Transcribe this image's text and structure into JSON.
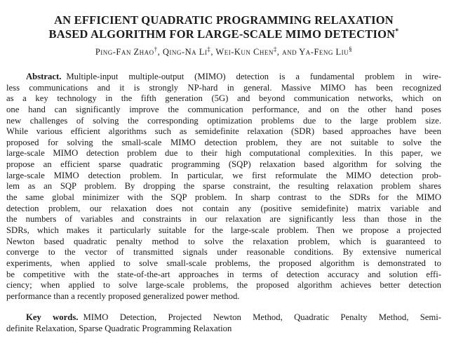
{
  "page": {
    "background": "#ffffff",
    "text_color": "#1a1a1a"
  },
  "title": {
    "line1": "AN EFFICIENT QUADRATIC PROGRAMMING RELAXATION",
    "line2": "BASED ALGORITHM FOR LARGE-SCALE MIMO DETECTION",
    "footnote_mark": "*"
  },
  "authors": {
    "segments": [
      {
        "text": "Ping-Fan Zhao",
        "mark": "†",
        "sep": ", "
      },
      {
        "text": "Qing-Na Li",
        "mark": "‡",
        "sep": ", "
      },
      {
        "text": "Wei-Kun Chen",
        "mark": "‡",
        "sep": ", "
      },
      {
        "text": "and Ya-Feng Liu",
        "mark": "§",
        "sep": ""
      }
    ]
  },
  "abstract": {
    "heading": "Abstract.",
    "lines": [
      "Multiple-input multiple-output (MIMO) detection is a fundamental problem in wire-",
      "less communications and it is strongly NP-hard in general. Massive MIMO has been recognized",
      "as a key technology in the fifth generation (5G) and beyond communication networks, which on",
      "one hand can significantly improve the communication performance, and on the other hand poses",
      "new challenges of solving the corresponding optimization problems due to the large problem size.",
      "While various efficient algorithms such as semidefinite relaxation (SDR) based approaches have been",
      "proposed for solving the small-scale MIMO detection problem, they are not suitable to solve the",
      "large-scale MIMO detection problem due to their high computational complexities. In this paper, we",
      "propose an efficient sparse quadratic programming (SQP) relaxation based algorithm for solving the",
      "large-scale MIMO detection problem. In particular, we first reformulate the MIMO detection prob-",
      "lem as an SQP problem. By dropping the sparse constraint, the resulting relaxation problem shares",
      "the same global minimizer with the SQP problem. In sharp contrast to the SDRs for the MIMO",
      "detection problem, our relaxation does not contain any (positive semidefinite) matrix variable and",
      "the numbers of variables and constraints in our relaxation are significantly less than those in the",
      "SDRs, which makes it particularly suitable for the large-scale problem. Then we propose a projected",
      "Newton based quadratic penalty method to solve the relaxation problem, which is guaranteed to",
      "converge to the vector of transmitted signals under reasonable conditions. By extensive numerical",
      "experiments, when applied to solve small-scale problems, the proposed algorithm is demonstrated to",
      "be competitive with the state-of-the-art approaches in terms of detection accuracy and solution effi-",
      "ciency; when applied to solve large-scale problems, the proposed algorithm achieves better detection",
      "performance than a recently proposed generalized power method."
    ]
  },
  "keywords": {
    "heading": "Key words.",
    "lines": [
      "MIMO Detection, Projected Newton Method, Quadratic Penalty Method, Semi-",
      "definite Relaxation, Sparse Quadratic Programming Relaxation"
    ]
  }
}
